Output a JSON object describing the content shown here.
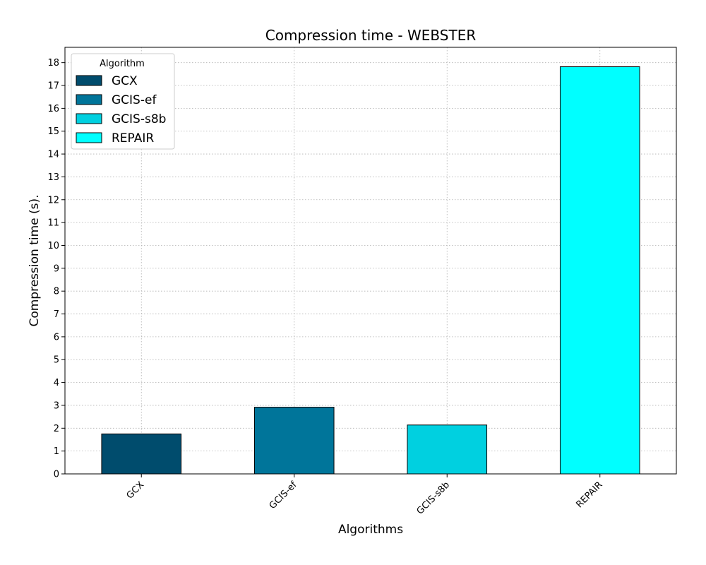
{
  "chart_data": {
    "type": "bar",
    "title": "Compression time -  WEBSTER",
    "xlabel": "Algorithms",
    "ylabel": "Compression time (s).",
    "categories": [
      "GCX",
      "GCIS-ef",
      "GCIS-s8b",
      "REPAIR"
    ],
    "values": [
      1.75,
      2.92,
      2.14,
      17.82
    ],
    "colors": [
      "#004c6d",
      "#00759a",
      "#00d0e0",
      "#00ffff"
    ],
    "ylim": [
      0,
      18.67
    ],
    "yticks": [
      0,
      1,
      2,
      3,
      4,
      5,
      6,
      7,
      8,
      9,
      10,
      11,
      12,
      13,
      14,
      15,
      16,
      17,
      18
    ],
    "grid": true,
    "legend": {
      "title": "Algorithm",
      "placement": "top-left",
      "entries": [
        "GCX",
        "GCIS-ef",
        "GCIS-s8b",
        "REPAIR"
      ]
    },
    "xtick_rotation": 45
  }
}
